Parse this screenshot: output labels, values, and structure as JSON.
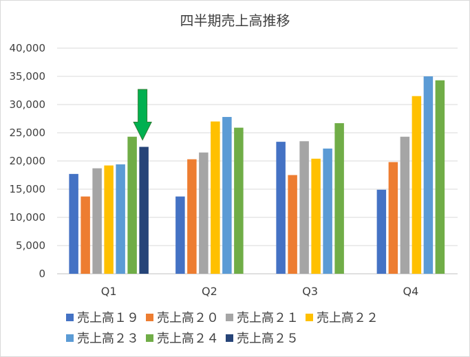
{
  "chart_data": {
    "type": "bar",
    "title": "四半期売上高推移",
    "categories": [
      "Q1",
      "Q2",
      "Q3",
      "Q4"
    ],
    "ylim": [
      0,
      40000
    ],
    "yticks": [
      0,
      5000,
      10000,
      15000,
      20000,
      25000,
      30000,
      35000,
      40000
    ],
    "ytick_labels": [
      "0",
      "5,000",
      "10,000",
      "15,000",
      "20,000",
      "25,000",
      "30,000",
      "35,000",
      "40,000"
    ],
    "grid": true,
    "legend_position": "bottom",
    "series": [
      {
        "name": "売上高１９",
        "color": "#4472C4",
        "values": [
          17700,
          13700,
          23400,
          14900
        ]
      },
      {
        "name": "売上高２０",
        "color": "#ED7D31",
        "values": [
          13700,
          20300,
          17500,
          19800
        ]
      },
      {
        "name": "売上高２１",
        "color": "#A5A5A5",
        "values": [
          18700,
          21500,
          23500,
          24300
        ]
      },
      {
        "name": "売上高２２",
        "color": "#FFC000",
        "values": [
          19200,
          27000,
          20400,
          31500
        ]
      },
      {
        "name": "売上高２３",
        "color": "#5B9BD5",
        "values": [
          19400,
          27800,
          22200,
          35000
        ]
      },
      {
        "name": "売上高２４",
        "color": "#70AD47",
        "values": [
          24300,
          25900,
          26700,
          34300
        ]
      },
      {
        "name": "売上高２５",
        "color": "#264478",
        "values": [
          22500,
          null,
          null,
          null
        ]
      }
    ],
    "annotations": [
      {
        "type": "arrow",
        "direction": "down",
        "color": "#00B050",
        "target_series": "売上高２５",
        "target_category": "Q1"
      }
    ]
  }
}
